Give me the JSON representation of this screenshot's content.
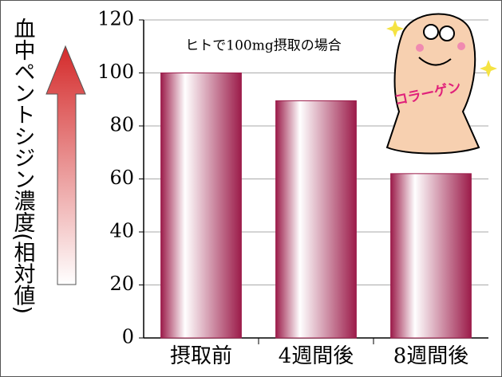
{
  "chart_data": {
    "type": "bar",
    "ylabel": "血中ペントシジン濃度(相対値)",
    "annotation": "ヒトで100mg摂取の場合",
    "mascot_text": "コラーゲン",
    "categories": [
      "摂取前",
      "4週間後",
      "8週間後"
    ],
    "values": [
      100,
      89.5,
      62
    ],
    "color": "#9c1c4a",
    "ylim": [
      0,
      120
    ],
    "yticks": [
      0,
      20,
      40,
      60,
      80,
      100,
      120
    ],
    "grid": true
  }
}
